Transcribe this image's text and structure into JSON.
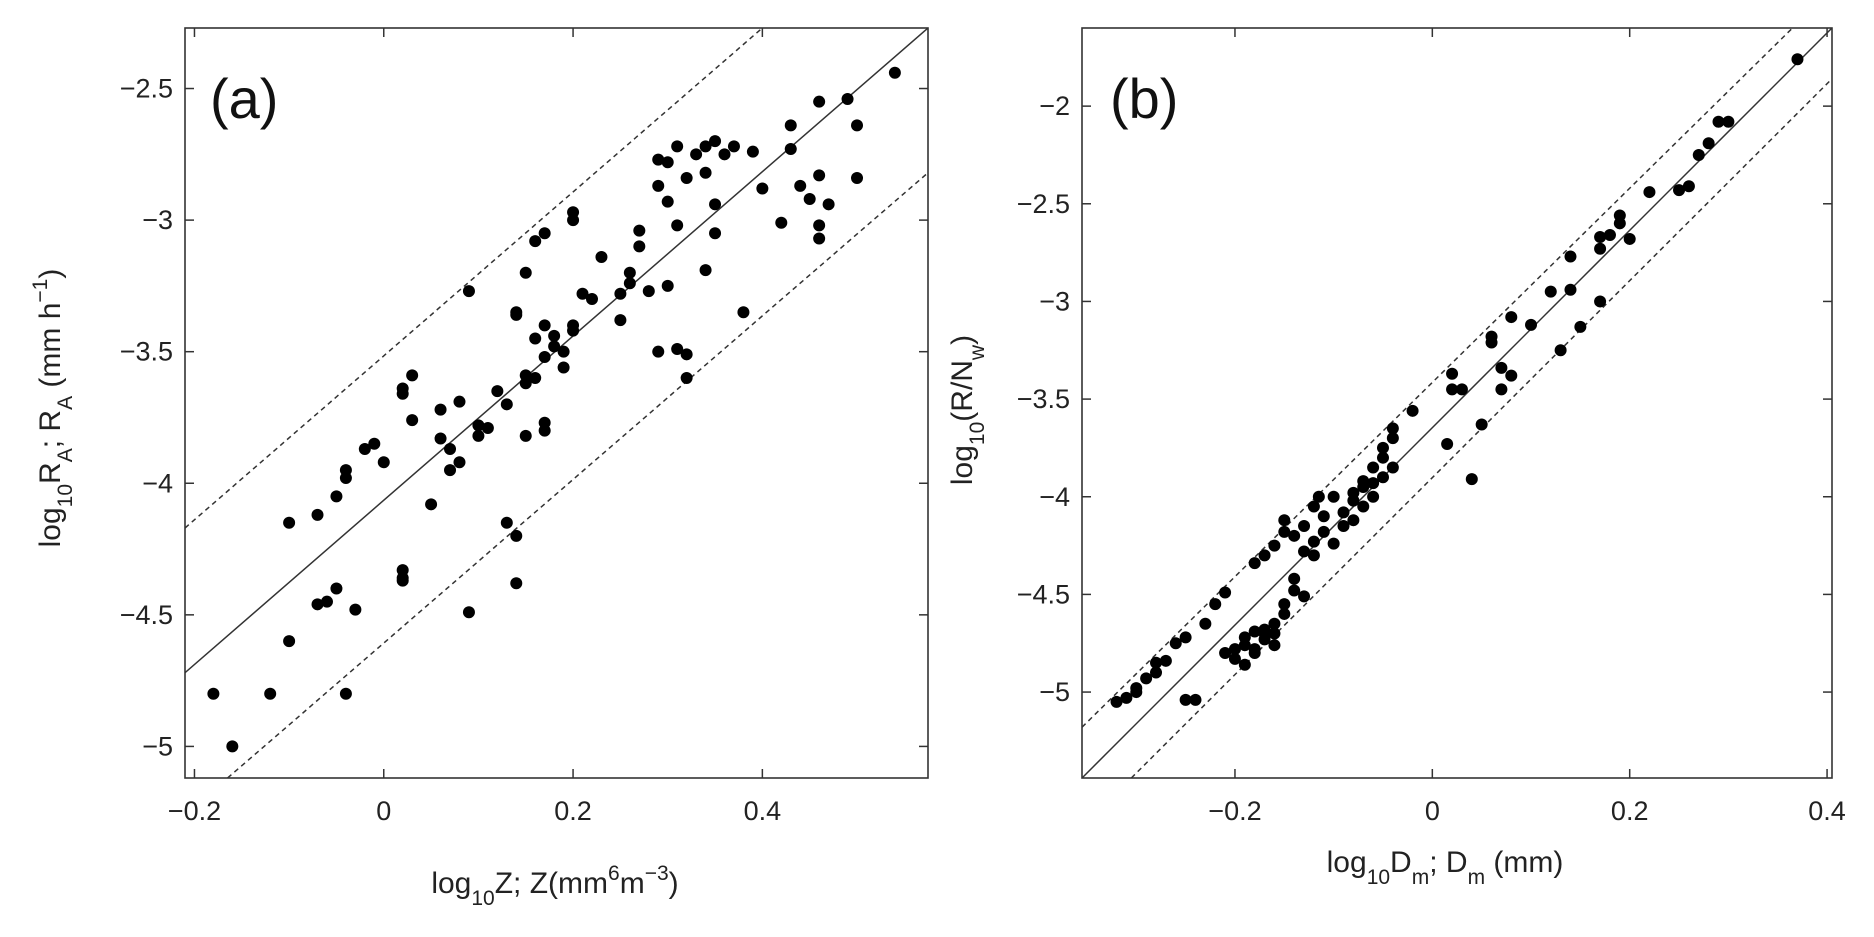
{
  "chart_data": [
    {
      "type": "scatter",
      "panel_label": "(a)",
      "xlabel": {
        "prefix": "log",
        "sub1": "10",
        "mid": "Z; Z(mm",
        "sup1": "6",
        "mid2": "m",
        "sup2": "−3",
        "suffix": ")"
      },
      "ylabel": {
        "prefix": "log",
        "sub1": "10",
        "mid": "R",
        "sub2": "A",
        "mid2": "; R",
        "sub3": "A",
        "mid3": " (mm h",
        "sup1": "−1",
        "suffix": ")"
      },
      "xlim": [
        -0.21,
        0.575
      ],
      "ylim": [
        -5.12,
        -2.27
      ],
      "xticks": [
        -0.2,
        0,
        0.2,
        0.4
      ],
      "xtick_labels": [
        "−0.2",
        "0",
        "0.2",
        "0.4"
      ],
      "yticks": [
        -5,
        -4.5,
        -4,
        -3.5,
        -3,
        -2.5
      ],
      "ytick_labels": [
        "−5",
        "−4.5",
        "−4",
        "−3.5",
        "−3",
        "−2.5"
      ],
      "lines": [
        {
          "style": "solid",
          "x": [
            -0.21,
            0.575
          ],
          "y": [
            -4.72,
            -2.27
          ]
        },
        {
          "style": "dashed",
          "x": [
            -0.21,
            0.4
          ],
          "y": [
            -4.17,
            -2.27
          ]
        },
        {
          "style": "dashed",
          "x": [
            -0.165,
            0.575
          ],
          "y": [
            -5.12,
            -2.82
          ]
        }
      ],
      "points": [
        [
          -0.18,
          -4.8
        ],
        [
          -0.16,
          -5.0
        ],
        [
          -0.12,
          -4.8
        ],
        [
          -0.1,
          -4.6
        ],
        [
          -0.1,
          -4.15
        ],
        [
          -0.07,
          -4.12
        ],
        [
          -0.07,
          -4.46
        ],
        [
          -0.06,
          -4.45
        ],
        [
          -0.05,
          -4.4
        ],
        [
          -0.05,
          -4.05
        ],
        [
          -0.04,
          -3.95
        ],
        [
          -0.04,
          -3.98
        ],
        [
          -0.04,
          -4.8
        ],
        [
          -0.03,
          -4.48
        ],
        [
          -0.02,
          -3.87
        ],
        [
          -0.01,
          -3.85
        ],
        [
          0.0,
          -3.92
        ],
        [
          0.02,
          -3.64
        ],
        [
          0.02,
          -3.66
        ],
        [
          0.02,
          -4.36
        ],
        [
          0.02,
          -4.33
        ],
        [
          0.02,
          -4.37
        ],
        [
          0.03,
          -3.59
        ],
        [
          0.03,
          -3.76
        ],
        [
          0.05,
          -4.08
        ],
        [
          0.06,
          -3.72
        ],
        [
          0.06,
          -3.83
        ],
        [
          0.07,
          -3.87
        ],
        [
          0.07,
          -3.95
        ],
        [
          0.08,
          -3.69
        ],
        [
          0.08,
          -3.92
        ],
        [
          0.09,
          -4.49
        ],
        [
          0.09,
          -3.27
        ],
        [
          0.1,
          -3.78
        ],
        [
          0.1,
          -3.82
        ],
        [
          0.11,
          -3.79
        ],
        [
          0.12,
          -3.65
        ],
        [
          0.13,
          -3.7
        ],
        [
          0.13,
          -4.15
        ],
        [
          0.14,
          -3.35
        ],
        [
          0.14,
          -3.36
        ],
        [
          0.14,
          -4.38
        ],
        [
          0.14,
          -4.2
        ],
        [
          0.15,
          -3.2
        ],
        [
          0.15,
          -3.59
        ],
        [
          0.15,
          -3.62
        ],
        [
          0.15,
          -3.82
        ],
        [
          0.16,
          -3.45
        ],
        [
          0.16,
          -3.08
        ],
        [
          0.16,
          -3.6
        ],
        [
          0.17,
          -3.4
        ],
        [
          0.17,
          -3.52
        ],
        [
          0.17,
          -3.8
        ],
        [
          0.17,
          -3.77
        ],
        [
          0.17,
          -3.05
        ],
        [
          0.18,
          -3.48
        ],
        [
          0.18,
          -3.44
        ],
        [
          0.19,
          -3.5
        ],
        [
          0.19,
          -3.56
        ],
        [
          0.2,
          -3.42
        ],
        [
          0.2,
          -3.4
        ],
        [
          0.2,
          -2.97
        ],
        [
          0.2,
          -3.0
        ],
        [
          0.21,
          -3.28
        ],
        [
          0.22,
          -3.3
        ],
        [
          0.23,
          -3.14
        ],
        [
          0.25,
          -3.38
        ],
        [
          0.25,
          -3.28
        ],
        [
          0.26,
          -3.2
        ],
        [
          0.26,
          -3.24
        ],
        [
          0.27,
          -3.1
        ],
        [
          0.27,
          -3.04
        ],
        [
          0.28,
          -3.27
        ],
        [
          0.29,
          -3.5
        ],
        [
          0.29,
          -2.77
        ],
        [
          0.29,
          -2.87
        ],
        [
          0.3,
          -3.25
        ],
        [
          0.3,
          -2.93
        ],
        [
          0.3,
          -2.78
        ],
        [
          0.31,
          -3.49
        ],
        [
          0.31,
          -2.72
        ],
        [
          0.31,
          -3.02
        ],
        [
          0.32,
          -2.84
        ],
        [
          0.32,
          -3.51
        ],
        [
          0.32,
          -3.6
        ],
        [
          0.33,
          -2.75
        ],
        [
          0.34,
          -2.72
        ],
        [
          0.34,
          -2.82
        ],
        [
          0.34,
          -3.19
        ],
        [
          0.35,
          -2.94
        ],
        [
          0.35,
          -3.05
        ],
        [
          0.35,
          -2.7
        ],
        [
          0.36,
          -2.75
        ],
        [
          0.37,
          -2.72
        ],
        [
          0.38,
          -3.35
        ],
        [
          0.39,
          -2.74
        ],
        [
          0.4,
          -2.88
        ],
        [
          0.42,
          -3.01
        ],
        [
          0.43,
          -2.64
        ],
        [
          0.43,
          -2.73
        ],
        [
          0.44,
          -2.87
        ],
        [
          0.45,
          -2.92
        ],
        [
          0.46,
          -2.83
        ],
        [
          0.46,
          -3.02
        ],
        [
          0.46,
          -3.07
        ],
        [
          0.46,
          -2.55
        ],
        [
          0.47,
          -2.94
        ],
        [
          0.49,
          -2.54
        ],
        [
          0.5,
          -2.84
        ],
        [
          0.5,
          -2.64
        ],
        [
          0.54,
          -2.44
        ]
      ]
    },
    {
      "type": "scatter",
      "panel_label": "(b)",
      "xlabel": {
        "prefix": "log",
        "sub1": "10",
        "mid": "D",
        "sub2": "m",
        "mid2": "; D",
        "sub3": "m",
        "suffix": " (mm)"
      },
      "ylabel": {
        "prefix": "log",
        "sub1": "10",
        "mid": "(R/N",
        "sub2": "w",
        "suffix": ")"
      },
      "xlim": [
        -0.355,
        0.405
      ],
      "ylim": [
        -5.44,
        -1.6
      ],
      "xticks": [
        -0.2,
        0,
        0.2,
        0.4
      ],
      "xtick_labels": [
        "−0.2",
        "0",
        "0.2",
        "0.4"
      ],
      "yticks": [
        -5,
        -4.5,
        -4,
        -3.5,
        -3,
        -2.5,
        -2
      ],
      "ytick_labels": [
        "−5",
        "−4.5",
        "−4",
        "−3.5",
        "−3",
        "−2.5",
        "−2"
      ],
      "lines": [
        {
          "style": "solid",
          "x": [
            -0.355,
            0.405
          ],
          "y": [
            -5.44,
            -1.6
          ]
        },
        {
          "style": "dashed",
          "x": [
            -0.355,
            0.365
          ],
          "y": [
            -5.18,
            -1.6
          ]
        },
        {
          "style": "dashed",
          "x": [
            -0.305,
            0.405
          ],
          "y": [
            -5.44,
            -1.86
          ]
        }
      ],
      "points": [
        [
          -0.32,
          -5.05
        ],
        [
          -0.31,
          -5.03
        ],
        [
          -0.3,
          -5.0
        ],
        [
          -0.3,
          -4.98
        ],
        [
          -0.29,
          -4.93
        ],
        [
          -0.28,
          -4.9
        ],
        [
          -0.28,
          -4.85
        ],
        [
          -0.27,
          -4.84
        ],
        [
          -0.26,
          -4.75
        ],
        [
          -0.25,
          -4.72
        ],
        [
          -0.24,
          -5.04
        ],
        [
          -0.25,
          -5.04
        ],
        [
          -0.23,
          -4.65
        ],
        [
          -0.22,
          -4.55
        ],
        [
          -0.21,
          -4.49
        ],
        [
          -0.21,
          -4.8
        ],
        [
          -0.2,
          -4.78
        ],
        [
          -0.2,
          -4.83
        ],
        [
          -0.19,
          -4.76
        ],
        [
          -0.19,
          -4.86
        ],
        [
          -0.19,
          -4.72
        ],
        [
          -0.18,
          -4.69
        ],
        [
          -0.18,
          -4.78
        ],
        [
          -0.18,
          -4.8
        ],
        [
          -0.17,
          -4.7
        ],
        [
          -0.17,
          -4.73
        ],
        [
          -0.17,
          -4.68
        ],
        [
          -0.16,
          -4.7
        ],
        [
          -0.16,
          -4.76
        ],
        [
          -0.16,
          -4.65
        ],
        [
          -0.15,
          -4.6
        ],
        [
          -0.15,
          -4.55
        ],
        [
          -0.18,
          -4.34
        ],
        [
          -0.17,
          -4.3
        ],
        [
          -0.16,
          -4.25
        ],
        [
          -0.15,
          -4.18
        ],
        [
          -0.15,
          -4.12
        ],
        [
          -0.14,
          -4.2
        ],
        [
          -0.14,
          -4.42
        ],
        [
          -0.14,
          -4.48
        ],
        [
          -0.13,
          -4.15
        ],
        [
          -0.13,
          -4.28
        ],
        [
          -0.13,
          -4.51
        ],
        [
          -0.12,
          -4.05
        ],
        [
          -0.12,
          -4.23
        ],
        [
          -0.12,
          -4.3
        ],
        [
          -0.11,
          -4.1
        ],
        [
          -0.11,
          -4.18
        ],
        [
          -0.1,
          -4.0
        ],
        [
          -0.1,
          -4.24
        ],
        [
          -0.09,
          -4.08
        ],
        [
          -0.09,
          -4.15
        ],
        [
          -0.08,
          -3.98
        ],
        [
          -0.08,
          -4.02
        ],
        [
          -0.08,
          -4.12
        ],
        [
          -0.07,
          -3.95
        ],
        [
          -0.07,
          -4.05
        ],
        [
          -0.07,
          -3.92
        ],
        [
          -0.06,
          -3.85
        ],
        [
          -0.06,
          -3.93
        ],
        [
          -0.06,
          -4.0
        ],
        [
          -0.05,
          -3.8
        ],
        [
          -0.05,
          -3.75
        ],
        [
          -0.05,
          -3.9
        ],
        [
          -0.04,
          -3.7
        ],
        [
          -0.04,
          -3.85
        ],
        [
          -0.04,
          -3.65
        ],
        [
          -0.02,
          -3.56
        ],
        [
          0.02,
          -3.37
        ],
        [
          0.02,
          -3.45
        ],
        [
          0.03,
          -3.45
        ],
        [
          0.04,
          -3.91
        ],
        [
          0.05,
          -3.63
        ],
        [
          0.06,
          -3.18
        ],
        [
          0.06,
          -3.21
        ],
        [
          0.07,
          -3.34
        ],
        [
          0.07,
          -3.45
        ],
        [
          0.08,
          -3.08
        ],
        [
          0.08,
          -3.38
        ],
        [
          0.1,
          -3.12
        ],
        [
          0.12,
          -2.95
        ],
        [
          0.13,
          -3.25
        ],
        [
          0.14,
          -2.77
        ],
        [
          0.14,
          -2.94
        ],
        [
          0.15,
          -3.13
        ],
        [
          0.17,
          -2.73
        ],
        [
          0.17,
          -2.67
        ],
        [
          0.17,
          -3.0
        ],
        [
          0.18,
          -2.66
        ],
        [
          0.19,
          -2.6
        ],
        [
          0.19,
          -2.56
        ],
        [
          0.2,
          -2.68
        ],
        [
          0.22,
          -2.44
        ],
        [
          0.25,
          -2.43
        ],
        [
          0.26,
          -2.41
        ],
        [
          0.27,
          -2.25
        ],
        [
          0.28,
          -2.19
        ],
        [
          0.29,
          -2.08
        ],
        [
          0.3,
          -2.08
        ],
        [
          0.37,
          -1.76
        ],
        [
          0.015,
          -3.73
        ],
        [
          -0.115,
          -4.0
        ]
      ]
    }
  ]
}
